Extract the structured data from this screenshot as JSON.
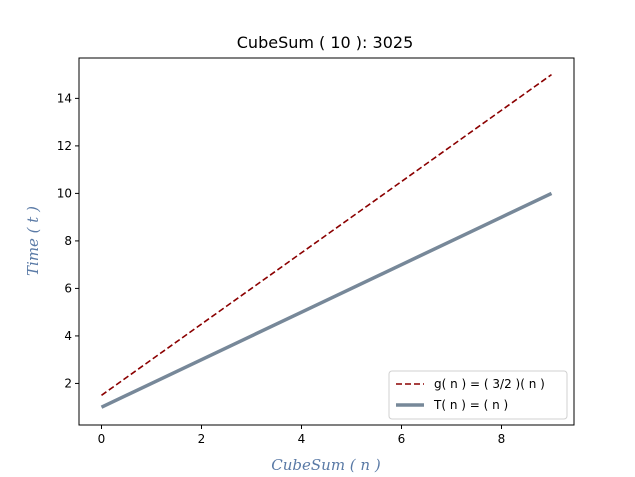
{
  "chart_data": {
    "type": "line",
    "title": "CubeSum ( 10 ): 3025",
    "xlabel": "CubeSum ( n )",
    "ylabel": "Time ( t )",
    "xlim": [
      -0.45,
      9.45
    ],
    "ylim": [
      0.25,
      15.7
    ],
    "xticks": [
      0,
      2,
      4,
      6,
      8
    ],
    "yticks": [
      2,
      4,
      6,
      8,
      10,
      12,
      14
    ],
    "grid": false,
    "legend_position": "lower-right",
    "series": [
      {
        "name": "g( n ) = ( 3/2 )( n )",
        "color": "#8b0000",
        "style": "dashed",
        "x": [
          0,
          1,
          2,
          3,
          4,
          5,
          6,
          7,
          8,
          9
        ],
        "y": [
          1.5,
          3,
          4.5,
          6,
          7.5,
          9,
          10.5,
          12,
          13.5,
          15
        ]
      },
      {
        "name": "T( n ) = ( n )",
        "color": "#778899",
        "style": "solid",
        "x": [
          0,
          1,
          2,
          3,
          4,
          5,
          6,
          7,
          8,
          9
        ],
        "y": [
          1,
          2,
          3,
          4,
          5,
          6,
          7,
          8,
          9,
          10
        ]
      }
    ]
  }
}
